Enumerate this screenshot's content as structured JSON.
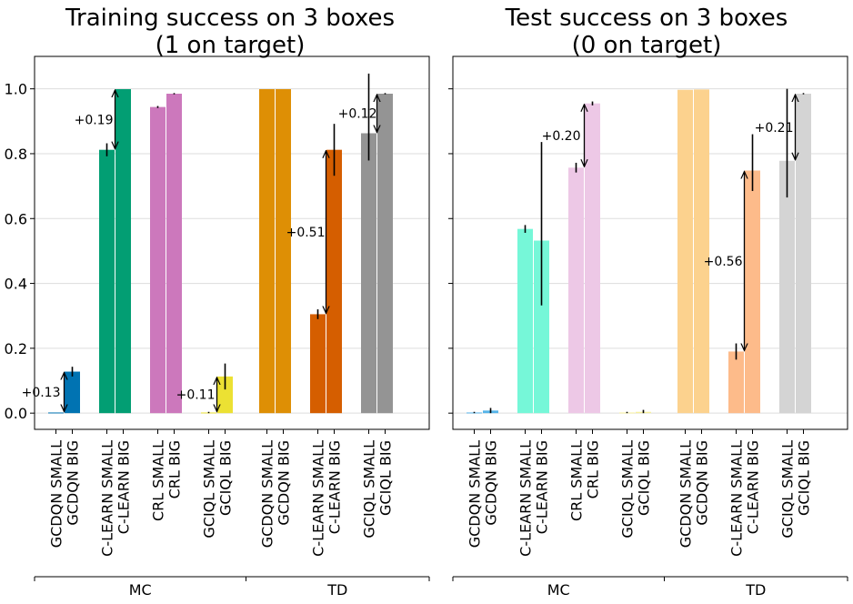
{
  "chart_data": [
    {
      "type": "bar",
      "title": "Training success on 3 boxes\n(1 on target)",
      "ylim": [
        -0.05,
        1.1
      ],
      "yticks": [
        0.0,
        0.2,
        0.4,
        0.6,
        0.8,
        1.0
      ],
      "ytick_labels": [
        "0.0",
        "0.2",
        "0.4",
        "0.6",
        "0.8",
        "1.0"
      ],
      "grid": "horizontal",
      "categories": [
        "GCDQN SMALL",
        "GCDQN BIG",
        "C-LEARN SMALL",
        "C-LEARN BIG",
        "CRL SMALL",
        "CRL BIG",
        "GCIQL SMALL",
        "GCIQL BIG",
        "GCDQN SMALL",
        "GCDQN BIG",
        "C-LEARN SMALL",
        "C-LEARN BIG",
        "GCIQL SMALL",
        "GCIQL BIG"
      ],
      "values": [
        0.002,
        0.128,
        0.812,
        0.999,
        0.944,
        0.985,
        0.002,
        0.113,
        0.999,
        0.999,
        0.305,
        0.812,
        0.863,
        0.985
      ],
      "errors": [
        [
          0.002,
          0.002
        ],
        [
          0.113,
          0.143
        ],
        [
          0.792,
          0.832
        ],
        [
          0.998,
          1.0
        ],
        [
          0.941,
          0.947
        ],
        [
          0.983,
          0.987
        ],
        [
          0.0,
          0.004
        ],
        [
          0.073,
          0.153
        ],
        [
          0.998,
          1.0
        ],
        [
          0.998,
          1.0
        ],
        [
          0.29,
          0.32
        ],
        [
          0.732,
          0.892
        ],
        [
          0.779,
          1.047
        ],
        [
          0.983,
          0.987
        ]
      ],
      "colors": [
        "#0173b2",
        "#0173b2",
        "#029e73",
        "#029e73",
        "#cc78bc",
        "#cc78bc",
        "#ece133",
        "#ece133",
        "#de8f05",
        "#de8f05",
        "#d55e00",
        "#d55e00",
        "#949494",
        "#949494"
      ],
      "annotations": [
        {
          "from": 0,
          "to": 1,
          "label": "+0.13"
        },
        {
          "from": 2,
          "to": 3,
          "label": "+0.19"
        },
        {
          "from": 6,
          "to": 7,
          "label": "+0.11"
        },
        {
          "from": 10,
          "to": 11,
          "label": "+0.51"
        },
        {
          "from": 12,
          "to": 13,
          "label": "+0.12"
        }
      ],
      "groups": [
        {
          "label": "MC",
          "start": 0,
          "end": 7
        },
        {
          "label": "TD",
          "start": 8,
          "end": 13
        }
      ]
    },
    {
      "type": "bar",
      "title": "Test success on 3 boxes\n(0 on target)",
      "ylim": [
        -0.05,
        1.1
      ],
      "yticks": [
        0.0,
        0.2,
        0.4,
        0.6,
        0.8,
        1.0
      ],
      "ytick_labels": [],
      "grid": "horizontal",
      "categories": [
        "GCDQN SMALL",
        "GCDQN BIG",
        "C-LEARN SMALL",
        "C-LEARN BIG",
        "CRL SMALL",
        "CRL BIG",
        "GCIQL SMALL",
        "GCIQL BIG",
        "GCDQN SMALL",
        "GCDQN BIG",
        "C-LEARN SMALL",
        "C-LEARN BIG",
        "GCIQL SMALL",
        "GCIQL BIG"
      ],
      "values": [
        0.002,
        0.008,
        0.568,
        0.532,
        0.757,
        0.955,
        0.002,
        0.004,
        0.997,
        0.998,
        0.19,
        0.748,
        0.778,
        0.985
      ],
      "errors": [
        [
          0.0,
          0.004
        ],
        [
          0.0,
          0.016
        ],
        [
          0.556,
          0.58
        ],
        [
          0.332,
          0.836
        ],
        [
          0.742,
          0.772
        ],
        [
          0.949,
          0.961
        ],
        [
          0.0,
          0.004
        ],
        [
          0.0,
          0.01
        ],
        [
          0.996,
          0.998
        ],
        [
          0.997,
          0.999
        ],
        [
          0.165,
          0.215
        ],
        [
          0.685,
          0.86
        ],
        [
          0.665,
          1.0
        ],
        [
          0.983,
          0.987
        ]
      ],
      "colors": [
        "#56b4e9",
        "#56b4e9",
        "#76f7d8",
        "#76f7d8",
        "#edc8e6",
        "#edc8e6",
        "#f7f09e",
        "#f7f09e",
        "#fcd28e",
        "#fcd28e",
        "#fdbb8a",
        "#fdbb8a",
        "#d4d4d4",
        "#d4d4d4"
      ],
      "annotations": [
        {
          "from": 4,
          "to": 5,
          "label": "+0.20"
        },
        {
          "from": 10,
          "to": 11,
          "label": "+0.56"
        },
        {
          "from": 12,
          "to": 13,
          "label": "+0.21"
        }
      ],
      "groups": [
        {
          "label": "MC",
          "start": 0,
          "end": 7
        },
        {
          "label": "TD",
          "start": 8,
          "end": 13
        }
      ]
    }
  ]
}
